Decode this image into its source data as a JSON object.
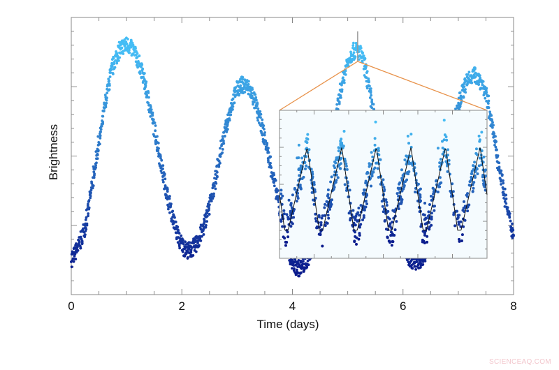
{
  "chart_data": {
    "type": "scatter",
    "title": "",
    "xlabel": "Time (days)",
    "ylabel": "Brightness",
    "xlim": [
      0,
      8
    ],
    "ylim": [
      0,
      1
    ],
    "x_ticks": [
      "0",
      "2",
      "4",
      "6",
      "8"
    ],
    "y_tick_labels_shown": false,
    "grid": false,
    "main_series": {
      "x": [
        0,
        0.25,
        0.5,
        0.75,
        1.0,
        1.25,
        1.5,
        1.75,
        2.0,
        2.25,
        2.5,
        2.75,
        3.0,
        3.25,
        3.5,
        3.75,
        4.0,
        4.25,
        4.5,
        4.75,
        5.0,
        5.25,
        5.5,
        5.75,
        6.0,
        6.25,
        6.5,
        6.75,
        7.0,
        7.25,
        7.5,
        7.75,
        8.0
      ],
      "y": [
        0.13,
        0.25,
        0.55,
        0.82,
        0.9,
        0.82,
        0.6,
        0.35,
        0.18,
        0.18,
        0.32,
        0.56,
        0.74,
        0.73,
        0.56,
        0.33,
        0.12,
        0.12,
        0.3,
        0.6,
        0.84,
        0.86,
        0.62,
        0.35,
        0.17,
        0.12,
        0.2,
        0.45,
        0.68,
        0.79,
        0.72,
        0.45,
        0.22
      ]
    },
    "zoom_marker_time": 5.18,
    "inset": {
      "cycles": 6,
      "model_line_phase": [
        0,
        0.35,
        0.45,
        1.0
      ],
      "model_line_level": [
        0.75,
        0.19,
        0.19,
        0.75
      ],
      "model_line_color": "#111111"
    },
    "colors": {
      "low": "#0a1a8c",
      "high": "#45bdf5",
      "zoom_lines": "#e8924a",
      "inset_background": "#f5fbfe"
    }
  },
  "watermark": "SCIENCEAQ.COM"
}
